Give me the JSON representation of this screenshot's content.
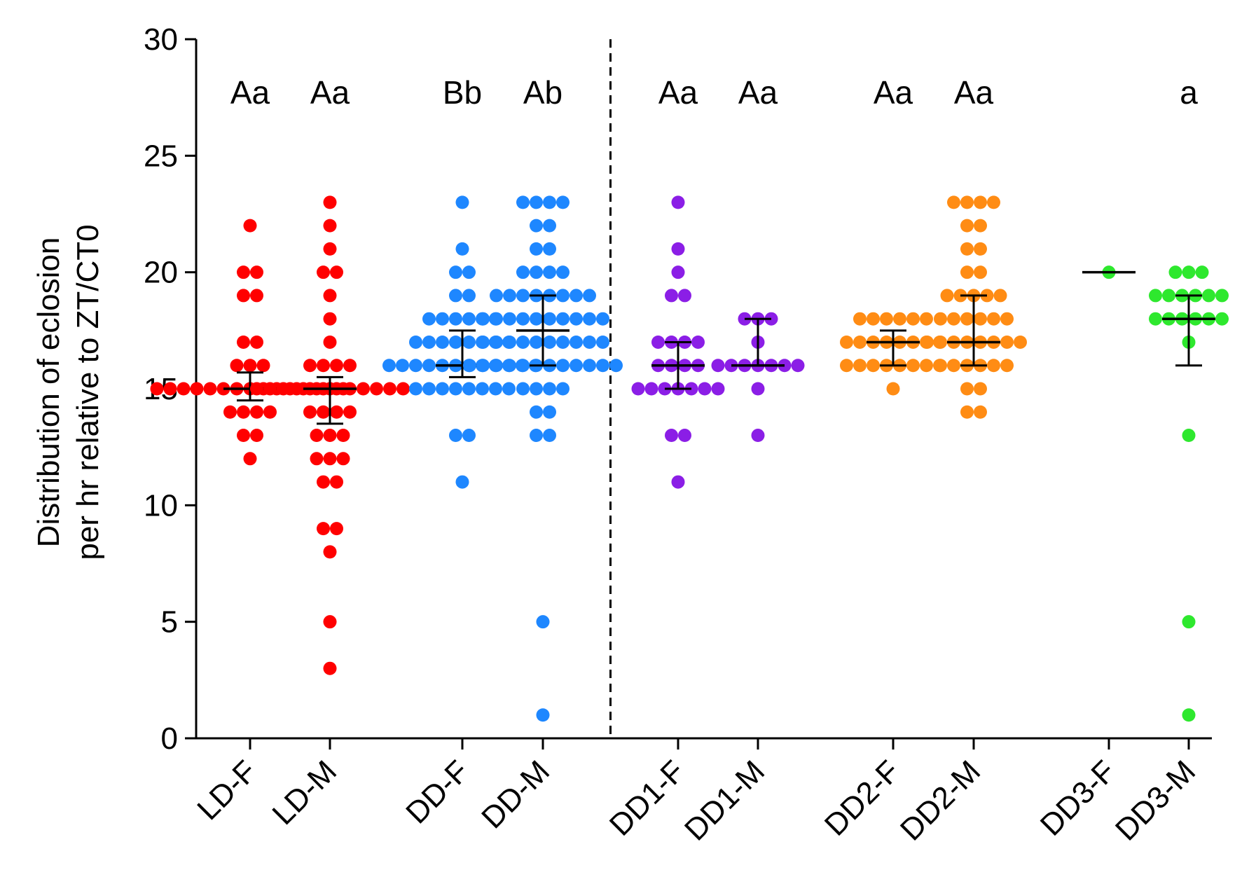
{
  "chart_data": {
    "type": "scatter",
    "subtype": "dot-plot with median and interquartile error bars",
    "title": "",
    "xlabel": "",
    "ylabel_lines": [
      "Distribution of eclosion",
      "per hr relative to ZT/CT0"
    ],
    "ylim": [
      0,
      30
    ],
    "yticks": [
      0,
      5,
      10,
      15,
      20,
      25,
      30
    ],
    "divider_after_group": 4,
    "groups": [
      {
        "label": "LD-F",
        "sig": "Aa",
        "color": "#ff0000",
        "median": 15,
        "q1": 14.5,
        "q3": 15.7,
        "points": {
          "12": 1,
          "13": 2,
          "14": 4,
          "15": 15,
          "16": 3,
          "17": 2,
          "19": 2,
          "20": 2,
          "22": 1
        }
      },
      {
        "label": "LD-M",
        "sig": "Aa",
        "color": "#ff0000",
        "median": 15,
        "q1": 13.5,
        "q3": 15.5,
        "points": {
          "3": 1,
          "5": 1,
          "8": 1,
          "9": 2,
          "11": 2,
          "12": 3,
          "13": 3,
          "14": 4,
          "15": 12,
          "16": 4,
          "17": 1,
          "18": 1,
          "19": 1,
          "20": 2,
          "21": 1,
          "22": 1,
          "23": 1
        }
      },
      {
        "label": "DD-F",
        "sig": "Bb",
        "color": "#1e87ff",
        "median": 16,
        "q1": 15.5,
        "q3": 17.5,
        "points": {
          "11": 1,
          "13": 2,
          "15": 8,
          "16": 12,
          "17": 8,
          "18": 6,
          "19": 2,
          "20": 2,
          "21": 1,
          "23": 1
        }
      },
      {
        "label": "DD-M",
        "sig": "Ab",
        "color": "#1e87ff",
        "median": 17.5,
        "q1": 16,
        "q3": 19,
        "points": {
          "1": 1,
          "5": 1,
          "13": 2,
          "14": 2,
          "15": 4,
          "16": 12,
          "17": 10,
          "18": 10,
          "19": 8,
          "20": 4,
          "21": 2,
          "22": 2,
          "23": 4
        }
      },
      {
        "label": "DD1-F",
        "sig": "Aa",
        "color": "#8b1ee6",
        "median": 16,
        "q1": 15,
        "q3": 17,
        "points": {
          "11": 1,
          "13": 2,
          "15": 7,
          "16": 4,
          "17": 4,
          "19": 2,
          "20": 1,
          "21": 1,
          "23": 1
        }
      },
      {
        "label": "DD1-M",
        "sig": "Aa",
        "color": "#8b1ee6",
        "median": 16,
        "q1": 16,
        "q3": 18,
        "points": {
          "13": 1,
          "15": 1,
          "16": 7,
          "17": 1,
          "18": 3
        }
      },
      {
        "label": "DD2-F",
        "sig": "Aa",
        "color": "#ff8c14",
        "median": 17,
        "q1": 16,
        "q3": 17.5,
        "points": {
          "15": 1,
          "16": 8,
          "17": 8,
          "18": 6
        }
      },
      {
        "label": "DD2-M",
        "sig": "Aa",
        "color": "#ff8c14",
        "median": 17,
        "q1": 16,
        "q3": 19,
        "points": {
          "14": 2,
          "15": 2,
          "16": 6,
          "17": 8,
          "18": 6,
          "19": 5,
          "20": 2,
          "21": 2,
          "22": 2,
          "23": 4
        }
      },
      {
        "label": "DD3-F",
        "sig": "",
        "color": "#2ee82e",
        "median": 20,
        "q1": 20,
        "q3": 20,
        "points": {
          "20": 1
        }
      },
      {
        "label": "DD3-M",
        "sig": "a",
        "color": "#2ee82e",
        "median": 18,
        "q1": 16,
        "q3": 19,
        "points": {
          "1": 1,
          "5": 1,
          "13": 1,
          "17": 1,
          "18": 6,
          "19": 6,
          "20": 3
        }
      }
    ]
  }
}
